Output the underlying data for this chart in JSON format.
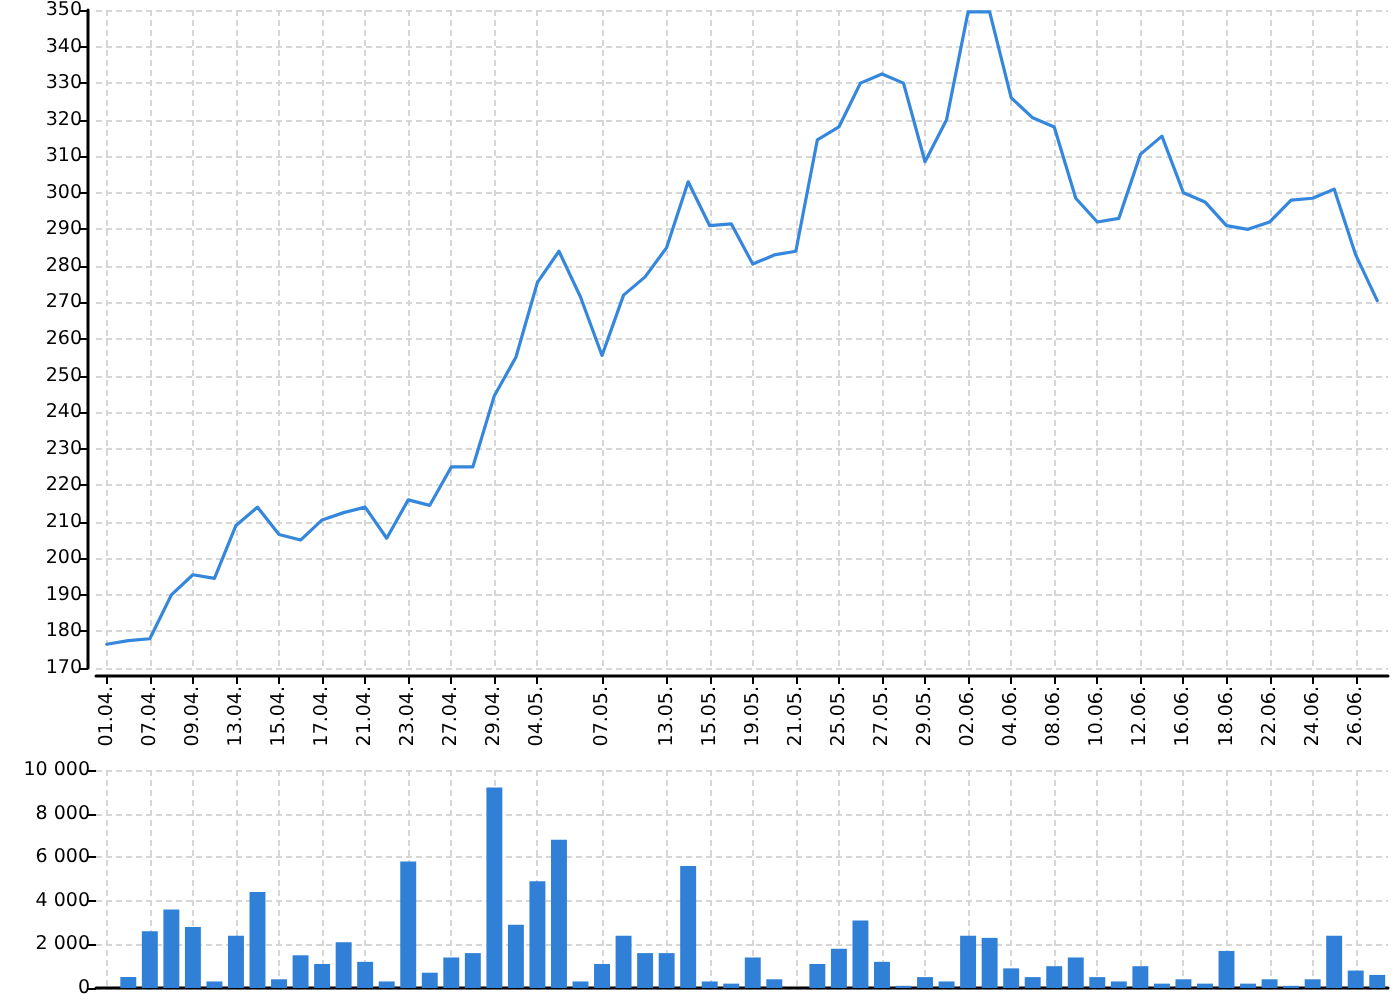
{
  "chart_data": [
    {
      "type": "line",
      "categories": [
        "01.04.",
        null,
        "07.04.",
        null,
        "09.04.",
        null,
        "13.04.",
        null,
        "15.04.",
        null,
        "17.04.",
        null,
        "21.04.",
        null,
        "23.04.",
        null,
        "27.04.",
        null,
        "29.04.",
        null,
        "04.05.",
        null,
        null,
        "07.05.",
        null,
        null,
        "13.05.",
        null,
        "15.05.",
        null,
        "19.05.",
        null,
        "21.05.",
        null,
        "25.05.",
        null,
        "27.05.",
        null,
        "29.05.",
        null,
        "02.06.",
        null,
        "04.06.",
        null,
        "08.06.",
        null,
        "10.06.",
        null,
        "12.06.",
        null,
        "16.06.",
        null,
        "18.06.",
        null,
        "22.06.",
        null,
        "24.06.",
        null,
        "26.06.",
        null
      ],
      "values": [
        176.5,
        177.5,
        178,
        190,
        195.5,
        194.5,
        209,
        214,
        206.5,
        205,
        210.5,
        212.5,
        214,
        205.5,
        216,
        214.5,
        225,
        225,
        244.5,
        255,
        275.5,
        284,
        271.5,
        255.5,
        272,
        277,
        285,
        303,
        291,
        291.5,
        280.5,
        283,
        284,
        314.5,
        318,
        330,
        332.5,
        330,
        308.5,
        320,
        349.5,
        349.5,
        326,
        320.5,
        318,
        298.5,
        292,
        293,
        310.5,
        315.5,
        300,
        297.5,
        291,
        290,
        292,
        298,
        298.5,
        301,
        283,
        270.5
      ],
      "color": "#3487dc",
      "ylim": [
        170,
        350
      ],
      "yticks": [
        170,
        180,
        190,
        200,
        210,
        220,
        230,
        240,
        250,
        260,
        270,
        280,
        290,
        300,
        310,
        320,
        330,
        340,
        350
      ],
      "grid": true,
      "marker": "none",
      "line_style": "solid"
    },
    {
      "type": "bar",
      "categories": [
        "01.04.",
        null,
        "07.04.",
        null,
        "09.04.",
        null,
        "13.04.",
        null,
        "15.04.",
        null,
        "17.04.",
        null,
        "21.04.",
        null,
        "23.04.",
        null,
        "27.04.",
        null,
        "29.04.",
        null,
        "04.05.",
        null,
        null,
        "07.05.",
        null,
        null,
        "13.05.",
        null,
        "15.05.",
        null,
        "19.05.",
        null,
        "21.05.",
        null,
        "25.05.",
        null,
        "27.05.",
        null,
        "29.05.",
        null,
        "02.06.",
        null,
        "04.06.",
        null,
        "08.06.",
        null,
        "10.06.",
        null,
        "12.06.",
        null,
        "16.06.",
        null,
        "18.06.",
        null,
        "22.06.",
        null,
        "24.06.",
        null,
        "26.06.",
        null
      ],
      "values": [
        null,
        500,
        2600,
        3600,
        2800,
        300,
        2400,
        4400,
        400,
        1500,
        1100,
        2100,
        1200,
        300,
        5800,
        700,
        1400,
        1600,
        9200,
        2900,
        4900,
        6800,
        300,
        1100,
        2400,
        1600,
        1600,
        5600,
        300,
        200,
        1400,
        400,
        null,
        1100,
        1800,
        3100,
        1200,
        100,
        500,
        300,
        2400,
        2300,
        900,
        500,
        1000,
        1400,
        500,
        300,
        1000,
        200,
        400,
        200,
        1700,
        200,
        400,
        100,
        400,
        2400,
        800,
        600
      ],
      "color": "#2f80d6",
      "ylim": [
        0,
        10000
      ],
      "yticks": [
        0,
        {
          "value": 2000,
          "label": "2 000"
        },
        {
          "value": 4000,
          "label": "4 000"
        },
        {
          "value": 6000,
          "label": "6 000"
        },
        {
          "value": 8000,
          "label": "8 000"
        },
        {
          "value": 10000,
          "label": "10 000"
        }
      ],
      "grid": true,
      "tick_labels": "y"
    }
  ]
}
